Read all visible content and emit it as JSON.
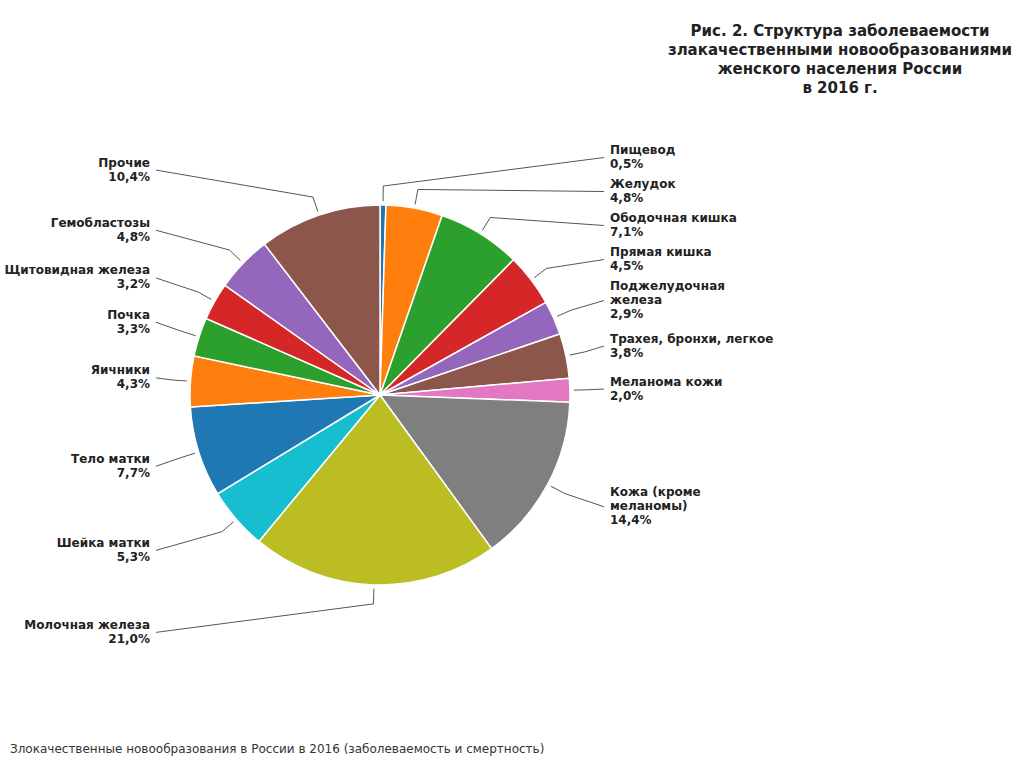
{
  "chart_data": {
    "type": "pie",
    "title": "Рис. 2.  Структура заболеваемости\nзлакачественными новообразованиями\nженского населения России\nв 2016 г.",
    "footnote": "Злокачественные новообразования в России в 2016  (заболеваемость и смертность)",
    "categories": [
      "Пищевод",
      "Желудок",
      "Ободочная кишка",
      "Прямая кишка",
      "Поджелудочная\nжелеза",
      "Трахея, бронхи, легкое",
      "Меланома кожи",
      "Кожа (кроме\nмеланомы)",
      "Молочная железа",
      "Шейка матки",
      "Тело матки",
      "Яичники",
      "Почка",
      "Щитовидная железа",
      "Гемобластозы",
      "Прочие"
    ],
    "values": [
      0.5,
      4.8,
      7.1,
      4.5,
      2.9,
      3.8,
      2.0,
      14.4,
      21.0,
      5.3,
      7.7,
      4.3,
      3.3,
      3.2,
      4.8,
      10.4
    ],
    "value_labels": [
      "0,5%",
      "4,8%",
      "7,1%",
      "4,5%",
      "2,9%",
      "3,8%",
      "2,0%",
      "14,4%",
      "21,0%",
      "5,3%",
      "7,7%",
      "4,3%",
      "3,3%",
      "3,2%",
      "4,8%",
      "10,4%"
    ],
    "data_labels": true
  }
}
